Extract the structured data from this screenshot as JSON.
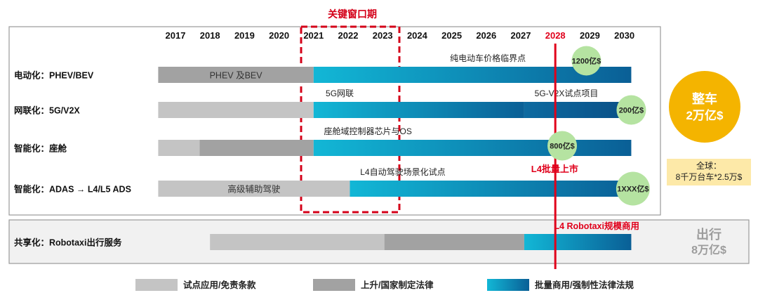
{
  "key_window_label": "关键窗口期",
  "years": [
    "2017",
    "2018",
    "2019",
    "2020",
    "2021",
    "2022",
    "2023",
    "2024",
    "2025",
    "2026",
    "2027",
    "2028",
    "2029",
    "2030"
  ],
  "highlight_year": "2028",
  "colors": {
    "light_gray": "#c4c4c4",
    "dark_gray": "#a2a2a2",
    "blue_start": "#12b7d6",
    "blue_end": "#0a5f96",
    "red": "#e0001b",
    "green": "#b5e3a1",
    "gold": "#f4b400",
    "label_box": "#fde9a8"
  },
  "rows": [
    {
      "label": "电动化：PHEV/BEV",
      "segments": [
        {
          "start": 2016.5,
          "end": 2021,
          "type": "dark_gray",
          "label": "PHEV 及BEV"
        },
        {
          "start": 2021,
          "end": 2030.2,
          "type": "blue",
          "label": ""
        }
      ],
      "annotations": [
        {
          "text": "纯电动车价格临界点",
          "at": 2024.95
        }
      ],
      "bubble": {
        "text": "1200亿$",
        "at": 2028.9
      }
    },
    {
      "label": "网联化：5G/V2X",
      "segments": [
        {
          "start": 2016.5,
          "end": 2021,
          "type": "light_gray",
          "label": ""
        },
        {
          "start": 2021,
          "end": 2027.1,
          "type": "blue",
          "label": ""
        },
        {
          "start": 2027.1,
          "end": 2030.2,
          "type": "blue_dark",
          "label": ""
        }
      ],
      "annotations": [
        {
          "text": "5G网联",
          "at": 2021.35
        },
        {
          "text": "5G-V2X试点项目",
          "at": 2027.4
        }
      ],
      "bubble": {
        "text": "200亿$",
        "at": 2030.2
      }
    },
    {
      "label": "智能化：座舱",
      "segments": [
        {
          "start": 2016.5,
          "end": 2017.7,
          "type": "light_gray",
          "label": ""
        },
        {
          "start": 2017.7,
          "end": 2021,
          "type": "dark_gray",
          "label": ""
        },
        {
          "start": 2021,
          "end": 2030.2,
          "type": "blue",
          "label": ""
        }
      ],
      "annotations": [
        {
          "text": "座舱域控制器芯片与OS",
          "at": 2021.3
        }
      ],
      "bubble": {
        "text": "800亿$",
        "at": 2028.2
      }
    },
    {
      "label": "智能化：ADAS → L4/L5 ADS",
      "segments": [
        {
          "start": 2016.5,
          "end": 2022.05,
          "type": "light_gray",
          "label": "高级辅助驾驶"
        },
        {
          "start": 2022.05,
          "end": 2030.2,
          "type": "blue",
          "label": ""
        }
      ],
      "annotations": [
        {
          "text": "L4自动驾驶场景化试点",
          "at": 2022.35
        }
      ],
      "red_annotation": {
        "text": "L4批量上市",
        "at": 2027.3
      },
      "bubble": {
        "text": "1XXX亿$",
        "at": 2030.25
      }
    }
  ],
  "sharing_row": {
    "label": "共享化：Robotaxi出行服务",
    "segments": [
      {
        "start": 2018.0,
        "end": 2023.05,
        "type": "light_gray"
      },
      {
        "start": 2023.05,
        "end": 2027.1,
        "type": "dark_gray"
      },
      {
        "start": 2027.1,
        "end": 2030.2,
        "type": "blue"
      }
    ],
    "red_annotation": {
      "text": "L4 Robotaxi规模商用",
      "at": 2029.2
    }
  },
  "side_labels": {
    "car_title": "整车",
    "car_value": "2万亿$",
    "global_line1": "全球：",
    "global_line2": "8千万台车*2.5万$",
    "mobility_title": "出行",
    "mobility_value": "8万亿$"
  },
  "legend": [
    {
      "label": "试点应用/免责条款",
      "type": "light_gray"
    },
    {
      "label": "上升/国家制定法律",
      "type": "dark_gray"
    },
    {
      "label": "批量商用/强制性法律法规",
      "type": "blue"
    }
  ]
}
